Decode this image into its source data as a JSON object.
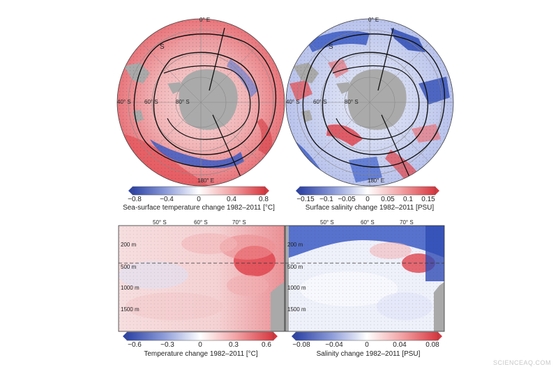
{
  "maps": [
    {
      "id": "sst",
      "labels": {
        "meridian_0": "0° E",
        "meridian_180": "180° E",
        "lat_40": "40° S",
        "lat_60": "60° S",
        "lat_80": "80° S"
      },
      "colorbar": {
        "ticks": [
          "−0.8",
          "−0.4",
          "0",
          "0.4",
          "0.8"
        ],
        "caption": "Sea-surface temperature change 1982–2011 [°C]"
      }
    },
    {
      "id": "sss",
      "labels": {
        "meridian_0": "0° E",
        "meridian_180": "180° E",
        "lat_40": "40° S",
        "lat_60": "60° S",
        "lat_80": "80° S"
      },
      "colorbar": {
        "ticks": [
          "−0.15",
          "−0.1",
          "−0.05",
          "0",
          "0.05",
          "0.1",
          "0.15"
        ],
        "caption": "Surface salinity change 1982–2011 [PSU]"
      }
    }
  ],
  "sections": [
    {
      "id": "temp",
      "lat_labels": [
        "50° S",
        "60° S",
        "70° S"
      ],
      "depth_labels": [
        "200 m",
        "500 m",
        "1000 m",
        "1500 m"
      ],
      "colorbar": {
        "ticks": [
          "−0.6",
          "−0.3",
          "0",
          "0.3",
          "0.6"
        ],
        "caption": "Temperature change 1982–2011 [°C]"
      }
    },
    {
      "id": "sal",
      "lat_labels": [
        "50° S",
        "60° S",
        "70° S"
      ],
      "depth_labels": [
        "200 m",
        "500 m",
        "1000 m",
        "1500 m"
      ],
      "colorbar": {
        "ticks": [
          "−0.08",
          "−0.04",
          "0",
          "0.04",
          "0.08"
        ],
        "caption": "Salinity change 1982–2011 [PSU]"
      }
    }
  ],
  "front_label": "S",
  "watermark": "SCIENCEAQ.COM",
  "colors": {
    "warm": "#e0454f",
    "cool": "#3553b8",
    "land": "#a9a9a9"
  }
}
